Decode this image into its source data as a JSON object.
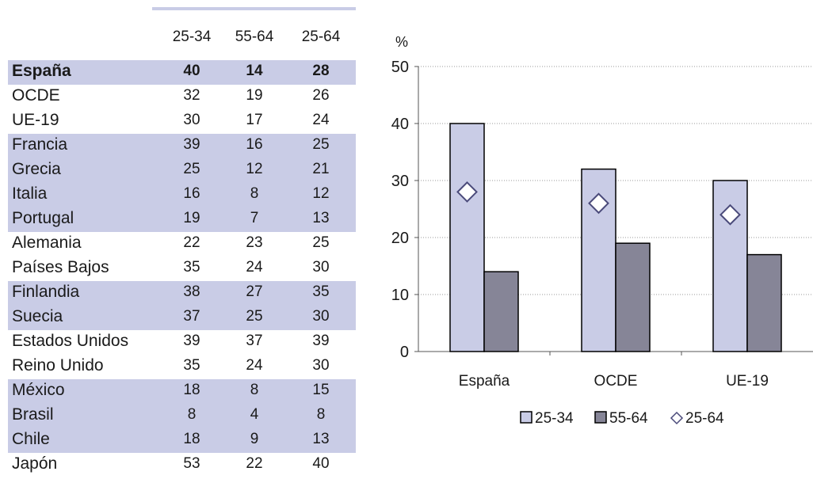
{
  "table": {
    "headers": [
      "25-34",
      "55-64",
      "25-64"
    ],
    "rows": [
      {
        "country": "España",
        "values": [
          40,
          14,
          28
        ],
        "shaded": true,
        "bold": true
      },
      {
        "country": "OCDE",
        "values": [
          32,
          19,
          26
        ],
        "shaded": false,
        "bold": false
      },
      {
        "country": "UE-19",
        "values": [
          30,
          17,
          24
        ],
        "shaded": false,
        "bold": false
      },
      {
        "country": "Francia",
        "values": [
          39,
          16,
          25
        ],
        "shaded": true,
        "bold": false
      },
      {
        "country": "Grecia",
        "values": [
          25,
          12,
          21
        ],
        "shaded": true,
        "bold": false
      },
      {
        "country": "Italia",
        "values": [
          16,
          8,
          12
        ],
        "shaded": true,
        "bold": false
      },
      {
        "country": "Portugal",
        "values": [
          19,
          7,
          13
        ],
        "shaded": true,
        "bold": false
      },
      {
        "country": "Alemania",
        "values": [
          22,
          23,
          25
        ],
        "shaded": false,
        "bold": false
      },
      {
        "country": "Países Bajos",
        "values": [
          35,
          24,
          30
        ],
        "shaded": false,
        "bold": false
      },
      {
        "country": "Finlandia",
        "values": [
          38,
          27,
          35
        ],
        "shaded": true,
        "bold": false
      },
      {
        "country": "Suecia",
        "values": [
          37,
          25,
          30
        ],
        "shaded": true,
        "bold": false
      },
      {
        "country": "Estados Unidos",
        "values": [
          39,
          37,
          39
        ],
        "shaded": false,
        "bold": false
      },
      {
        "country": "Reino Unido",
        "values": [
          35,
          24,
          30
        ],
        "shaded": false,
        "bold": false
      },
      {
        "country": "México",
        "values": [
          18,
          8,
          15
        ],
        "shaded": true,
        "bold": false
      },
      {
        "country": "Brasil",
        "values": [
          8,
          4,
          8
        ],
        "shaded": true,
        "bold": false
      },
      {
        "country": "Chile",
        "values": [
          18,
          9,
          13
        ],
        "shaded": true,
        "bold": false
      },
      {
        "country": "Japón",
        "values": [
          53,
          22,
          40
        ],
        "shaded": false,
        "bold": false
      }
    ]
  },
  "colors": {
    "shade": "#c9cce6",
    "bar_25_34": "#c9cce6",
    "bar_55_64": "#868597",
    "marker_stroke": "#4a4a7a",
    "grid": "#999999"
  },
  "chart_data": {
    "type": "bar",
    "ylabel": "%",
    "ylim": [
      0,
      50
    ],
    "yticks": [
      0,
      10,
      20,
      30,
      40,
      50
    ],
    "grid": true,
    "legend_position": "bottom",
    "categories": [
      "España",
      "OCDE",
      "UE-19"
    ],
    "series": [
      {
        "name": "25-34",
        "kind": "bar",
        "values": [
          40,
          32,
          30
        ]
      },
      {
        "name": "55-64",
        "kind": "bar",
        "values": [
          14,
          19,
          17
        ]
      },
      {
        "name": "25-64",
        "kind": "marker",
        "marker": "diamond",
        "values": [
          28,
          26,
          24
        ]
      }
    ]
  }
}
